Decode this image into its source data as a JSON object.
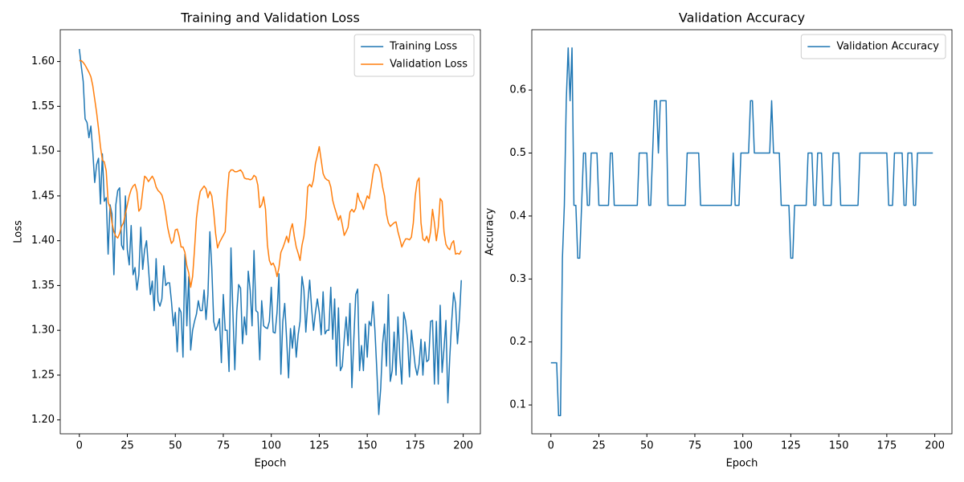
{
  "chart_data": [
    {
      "type": "line",
      "title": "Training and Validation Loss",
      "xlabel": "Epoch",
      "ylabel": "Loss",
      "x": [
        0,
        1,
        2,
        3,
        4,
        5,
        6,
        7,
        8,
        9,
        10,
        11,
        12,
        13,
        14,
        15,
        16,
        17,
        18,
        19,
        20,
        21,
        22,
        23,
        24,
        25,
        26,
        27,
        28,
        29,
        30,
        31,
        32,
        33,
        34,
        35,
        36,
        37,
        38,
        39,
        40,
        41,
        42,
        43,
        44,
        45,
        46,
        47,
        48,
        49,
        50,
        51,
        52,
        53,
        54,
        55,
        56,
        57,
        58,
        59,
        60,
        61,
        62,
        63,
        64,
        65,
        66,
        67,
        68,
        69,
        70,
        71,
        72,
        73,
        74,
        75,
        76,
        77,
        78,
        79,
        80,
        81,
        82,
        83,
        84,
        85,
        86,
        87,
        88,
        89,
        90,
        91,
        92,
        93,
        94,
        95,
        96,
        97,
        98,
        99,
        100,
        101,
        102,
        103,
        104,
        105,
        106,
        107,
        108,
        109,
        110,
        111,
        112,
        113,
        114,
        115,
        116,
        117,
        118,
        119,
        120,
        121,
        122,
        123,
        124,
        125,
        126,
        127,
        128,
        129,
        130,
        131,
        132,
        133,
        134,
        135,
        136,
        137,
        138,
        139,
        140,
        141,
        142,
        143,
        144,
        145,
        146,
        147,
        148,
        149,
        150,
        151,
        152,
        153,
        154,
        155,
        156,
        157,
        158,
        159,
        160,
        161,
        162,
        163,
        164,
        165,
        166,
        167,
        168,
        169,
        170,
        171,
        172,
        173,
        174,
        175,
        176,
        177,
        178,
        179,
        180,
        181,
        182,
        183,
        184,
        185,
        186,
        187,
        188,
        189,
        190,
        191,
        192,
        193,
        194,
        195,
        196,
        197,
        198,
        199
      ],
      "series": [
        {
          "name": "Training Loss",
          "color": "#1f77b4",
          "values": [
            1.614,
            1.595,
            1.578,
            1.536,
            1.532,
            1.515,
            1.528,
            1.5,
            1.465,
            1.485,
            1.492,
            1.441,
            1.497,
            1.444,
            1.448,
            1.385,
            1.44,
            1.43,
            1.362,
            1.44,
            1.456,
            1.459,
            1.395,
            1.39,
            1.45,
            1.39,
            1.373,
            1.417,
            1.362,
            1.37,
            1.345,
            1.362,
            1.415,
            1.368,
            1.39,
            1.4,
            1.37,
            1.34,
            1.355,
            1.322,
            1.38,
            1.333,
            1.327,
            1.335,
            1.372,
            1.35,
            1.353,
            1.353,
            1.332,
            1.305,
            1.32,
            1.276,
            1.325,
            1.32,
            1.27,
            1.385,
            1.305,
            1.36,
            1.278,
            1.3,
            1.31,
            1.318,
            1.333,
            1.322,
            1.322,
            1.345,
            1.312,
            1.34,
            1.41,
            1.37,
            1.31,
            1.3,
            1.305,
            1.313,
            1.264,
            1.34,
            1.3,
            1.3,
            1.254,
            1.392,
            1.32,
            1.256,
            1.32,
            1.351,
            1.347,
            1.285,
            1.315,
            1.295,
            1.366,
            1.345,
            1.305,
            1.389,
            1.322,
            1.32,
            1.267,
            1.333,
            1.305,
            1.303,
            1.302,
            1.31,
            1.348,
            1.298,
            1.297,
            1.32,
            1.363,
            1.251,
            1.31,
            1.33,
            1.29,
            1.247,
            1.302,
            1.28,
            1.305,
            1.27,
            1.295,
            1.31,
            1.36,
            1.345,
            1.298,
            1.33,
            1.356,
            1.325,
            1.3,
            1.32,
            1.335,
            1.32,
            1.295,
            1.343,
            1.296,
            1.3,
            1.3,
            1.348,
            1.29,
            1.335,
            1.26,
            1.325,
            1.255,
            1.26,
            1.29,
            1.315,
            1.283,
            1.33,
            1.236,
            1.29,
            1.34,
            1.346,
            1.255,
            1.283,
            1.255,
            1.307,
            1.27,
            1.31,
            1.305,
            1.332,
            1.3,
            1.255,
            1.206,
            1.235,
            1.285,
            1.307,
            1.26,
            1.34,
            1.243,
            1.255,
            1.298,
            1.25,
            1.315,
            1.27,
            1.24,
            1.32,
            1.31,
            1.29,
            1.248,
            1.3,
            1.28,
            1.26,
            1.25,
            1.262,
            1.29,
            1.25,
            1.287,
            1.265,
            1.267,
            1.31,
            1.311,
            1.24,
            1.31,
            1.24,
            1.328,
            1.253,
            1.28,
            1.311,
            1.219,
            1.27,
            1.31,
            1.342,
            1.33,
            1.285,
            1.313,
            1.356
          ]
        },
        {
          "name": "Validation Loss",
          "color": "#ff7f0e",
          "values": [
            1.601,
            1.601,
            1.599,
            1.596,
            1.592,
            1.588,
            1.583,
            1.573,
            1.558,
            1.543,
            1.525,
            1.505,
            1.49,
            1.488,
            1.478,
            1.443,
            1.437,
            1.42,
            1.41,
            1.405,
            1.403,
            1.408,
            1.416,
            1.42,
            1.43,
            1.44,
            1.45,
            1.457,
            1.461,
            1.463,
            1.455,
            1.433,
            1.436,
            1.455,
            1.472,
            1.47,
            1.466,
            1.469,
            1.472,
            1.468,
            1.46,
            1.456,
            1.454,
            1.451,
            1.443,
            1.43,
            1.415,
            1.405,
            1.397,
            1.4,
            1.412,
            1.413,
            1.405,
            1.393,
            1.393,
            1.387,
            1.372,
            1.364,
            1.348,
            1.36,
            1.39,
            1.425,
            1.443,
            1.455,
            1.458,
            1.461,
            1.458,
            1.448,
            1.455,
            1.45,
            1.432,
            1.408,
            1.392,
            1.398,
            1.402,
            1.406,
            1.41,
            1.45,
            1.476,
            1.479,
            1.479,
            1.477,
            1.477,
            1.478,
            1.479,
            1.476,
            1.47,
            1.469,
            1.469,
            1.468,
            1.469,
            1.473,
            1.471,
            1.462,
            1.437,
            1.44,
            1.449,
            1.435,
            1.395,
            1.378,
            1.373,
            1.375,
            1.37,
            1.36,
            1.37,
            1.387,
            1.392,
            1.398,
            1.405,
            1.398,
            1.412,
            1.419,
            1.405,
            1.393,
            1.386,
            1.378,
            1.395,
            1.405,
            1.425,
            1.46,
            1.463,
            1.46,
            1.468,
            1.486,
            1.495,
            1.505,
            1.49,
            1.475,
            1.47,
            1.468,
            1.467,
            1.46,
            1.445,
            1.437,
            1.43,
            1.423,
            1.428,
            1.418,
            1.406,
            1.41,
            1.415,
            1.432,
            1.435,
            1.432,
            1.436,
            1.453,
            1.445,
            1.442,
            1.435,
            1.443,
            1.45,
            1.447,
            1.46,
            1.475,
            1.485,
            1.485,
            1.482,
            1.475,
            1.46,
            1.45,
            1.43,
            1.42,
            1.416,
            1.418,
            1.42,
            1.421,
            1.41,
            1.402,
            1.393,
            1.398,
            1.402,
            1.402,
            1.401,
            1.404,
            1.42,
            1.45,
            1.466,
            1.47,
            1.42,
            1.402,
            1.4,
            1.405,
            1.398,
            1.41,
            1.435,
            1.42,
            1.4,
            1.415,
            1.447,
            1.444,
            1.41,
            1.396,
            1.392,
            1.39,
            1.397,
            1.4,
            1.385,
            1.386,
            1.385,
            1.389
          ]
        }
      ],
      "xlim": [
        -9.95,
        208.95
      ],
      "xticks": [
        0,
        25,
        50,
        75,
        100,
        125,
        150,
        175,
        200
      ],
      "ylim": [
        1.1845,
        1.6355
      ],
      "yticks": [
        {
          "value": 1.2,
          "label": "1.20"
        },
        1.25,
        {
          "value": 1.3,
          "label": "1.30"
        },
        1.35,
        {
          "value": 1.4,
          "label": "1.40"
        },
        1.45,
        {
          "value": 1.5,
          "label": "1.50"
        },
        1.55,
        {
          "value": 1.6,
          "label": "1.60"
        }
      ],
      "legend": "upper right"
    },
    {
      "type": "line",
      "title": "Validation Accuracy",
      "xlabel": "Epoch",
      "ylabel": "Accuracy",
      "x": [
        0,
        1,
        2,
        3,
        4,
        5,
        6,
        7,
        8,
        9,
        10,
        11,
        12,
        13,
        14,
        15,
        16,
        17,
        18,
        19,
        20,
        21,
        22,
        23,
        24,
        25,
        26,
        27,
        28,
        29,
        30,
        31,
        32,
        33,
        34,
        35,
        36,
        37,
        38,
        39,
        40,
        41,
        42,
        43,
        44,
        45,
        46,
        47,
        48,
        49,
        50,
        51,
        52,
        53,
        54,
        55,
        56,
        57,
        58,
        59,
        60,
        61,
        62,
        63,
        64,
        65,
        66,
        67,
        68,
        69,
        70,
        71,
        72,
        73,
        74,
        75,
        76,
        77,
        78,
        79,
        80,
        81,
        82,
        83,
        84,
        85,
        86,
        87,
        88,
        89,
        90,
        91,
        92,
        93,
        94,
        95,
        96,
        97,
        98,
        99,
        100,
        101,
        102,
        103,
        104,
        105,
        106,
        107,
        108,
        109,
        110,
        111,
        112,
        113,
        114,
        115,
        116,
        117,
        118,
        119,
        120,
        121,
        122,
        123,
        124,
        125,
        126,
        127,
        128,
        129,
        130,
        131,
        132,
        133,
        134,
        135,
        136,
        137,
        138,
        139,
        140,
        141,
        142,
        143,
        144,
        145,
        146,
        147,
        148,
        149,
        150,
        151,
        152,
        153,
        154,
        155,
        156,
        157,
        158,
        159,
        160,
        161,
        162,
        163,
        164,
        165,
        166,
        167,
        168,
        169,
        170,
        171,
        172,
        173,
        174,
        175,
        176,
        177,
        178,
        179,
        180,
        181,
        182,
        183,
        184,
        185,
        186,
        187,
        188,
        189,
        190,
        191,
        192,
        193,
        194,
        195,
        196,
        197,
        198,
        199
      ],
      "series": [
        {
          "name": "Validation Accuracy",
          "color": "#1f77b4",
          "values": [
            0.167,
            0.167,
            0.167,
            0.167,
            0.083,
            0.083,
            0.333,
            0.417,
            0.583,
            0.667,
            0.583,
            0.667,
            0.417,
            0.417,
            0.333,
            0.333,
            0.417,
            0.5,
            0.5,
            0.417,
            0.417,
            0.5,
            0.5,
            0.5,
            0.5,
            0.417,
            0.417,
            0.417,
            0.417,
            0.417,
            0.417,
            0.5,
            0.5,
            0.417,
            0.417,
            0.417,
            0.417,
            0.417,
            0.417,
            0.417,
            0.417,
            0.417,
            0.417,
            0.417,
            0.417,
            0.417,
            0.5,
            0.5,
            0.5,
            0.5,
            0.5,
            0.417,
            0.417,
            0.5,
            0.583,
            0.583,
            0.5,
            0.583,
            0.583,
            0.583,
            0.583,
            0.417,
            0.417,
            0.417,
            0.417,
            0.417,
            0.417,
            0.417,
            0.417,
            0.417,
            0.417,
            0.5,
            0.5,
            0.5,
            0.5,
            0.5,
            0.5,
            0.5,
            0.417,
            0.417,
            0.417,
            0.417,
            0.417,
            0.417,
            0.417,
            0.417,
            0.417,
            0.417,
            0.417,
            0.417,
            0.417,
            0.417,
            0.417,
            0.417,
            0.417,
            0.5,
            0.417,
            0.417,
            0.417,
            0.5,
            0.5,
            0.5,
            0.5,
            0.5,
            0.583,
            0.583,
            0.5,
            0.5,
            0.5,
            0.5,
            0.5,
            0.5,
            0.5,
            0.5,
            0.5,
            0.583,
            0.5,
            0.5,
            0.5,
            0.5,
            0.417,
            0.417,
            0.417,
            0.417,
            0.417,
            0.333,
            0.333,
            0.417,
            0.417,
            0.417,
            0.417,
            0.417,
            0.417,
            0.417,
            0.5,
            0.5,
            0.5,
            0.417,
            0.417,
            0.5,
            0.5,
            0.5,
            0.417,
            0.417,
            0.417,
            0.417,
            0.417,
            0.5,
            0.5,
            0.5,
            0.5,
            0.417,
            0.417,
            0.417,
            0.417,
            0.417,
            0.417,
            0.417,
            0.417,
            0.417,
            0.417,
            0.5,
            0.5,
            0.5,
            0.5,
            0.5,
            0.5,
            0.5,
            0.5,
            0.5,
            0.5,
            0.5,
            0.5,
            0.5,
            0.5,
            0.5,
            0.417,
            0.417,
            0.417,
            0.5,
            0.5,
            0.5,
            0.5,
            0.5,
            0.417,
            0.417,
            0.5,
            0.5,
            0.5,
            0.417,
            0.417,
            0.5,
            0.5,
            0.5,
            0.5,
            0.5,
            0.5,
            0.5,
            0.5,
            0.5
          ]
        }
      ],
      "xlim": [
        -9.95,
        208.95
      ],
      "xticks": [
        0,
        25,
        50,
        75,
        100,
        125,
        150,
        175,
        200
      ],
      "ylim": [
        0.0542,
        0.6958
      ],
      "yticks": [
        0.1,
        0.2,
        0.3,
        0.4,
        0.5,
        0.6
      ],
      "legend": "upper right"
    }
  ]
}
